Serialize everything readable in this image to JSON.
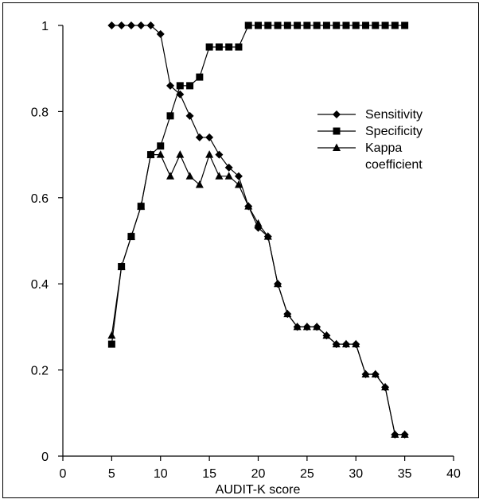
{
  "chart_data": {
    "type": "line",
    "title": "",
    "xlabel": "AUDIT-K score",
    "ylabel": "",
    "xlim": [
      0,
      40
    ],
    "ylim": [
      0,
      1
    ],
    "x_ticks": [
      0,
      5,
      10,
      15,
      20,
      25,
      30,
      35,
      40
    ],
    "x_tick_labels": [
      "0",
      "5",
      "10",
      "15",
      "20",
      "25",
      "30",
      "35",
      "40"
    ],
    "y_ticks": [
      0,
      0.2,
      0.4,
      0.6,
      0.8,
      1
    ],
    "y_tick_labels": [
      "0",
      "0.2",
      "0.4",
      "0.6",
      "0.8",
      "1"
    ],
    "grid": false,
    "legend_position": "top-right",
    "legend_title": "",
    "series": [
      {
        "name": "Sensitivity",
        "marker": "diamond",
        "x": [
          5,
          6,
          7,
          8,
          9,
          10,
          11,
          12,
          13,
          14,
          15,
          16,
          17,
          18,
          19,
          20,
          21,
          22,
          23,
          24,
          25,
          26,
          27,
          28,
          29,
          30,
          31,
          32,
          33,
          34,
          35
        ],
        "y": [
          1.0,
          1.0,
          1.0,
          1.0,
          1.0,
          0.98,
          0.86,
          0.84,
          0.79,
          0.74,
          0.74,
          0.7,
          0.67,
          0.65,
          0.58,
          0.53,
          0.51,
          0.4,
          0.33,
          0.3,
          0.3,
          0.3,
          0.28,
          0.26,
          0.26,
          0.26,
          0.19,
          0.19,
          0.16,
          0.05,
          0.05
        ]
      },
      {
        "name": "Specificity",
        "marker": "square",
        "x": [
          5,
          6,
          7,
          8,
          9,
          10,
          11,
          12,
          13,
          14,
          15,
          16,
          17,
          18,
          19,
          20,
          21,
          22,
          23,
          24,
          25,
          26,
          27,
          28,
          29,
          30,
          31,
          32,
          33,
          34,
          35
        ],
        "y": [
          0.26,
          0.44,
          0.51,
          0.58,
          0.7,
          0.72,
          0.79,
          0.86,
          0.86,
          0.88,
          0.95,
          0.95,
          0.95,
          0.95,
          1.0,
          1.0,
          1.0,
          1.0,
          1.0,
          1.0,
          1.0,
          1.0,
          1.0,
          1.0,
          1.0,
          1.0,
          1.0,
          1.0,
          1.0,
          1.0,
          1.0
        ]
      },
      {
        "name": "Kappa coefficient",
        "marker": "triangle",
        "x": [
          5,
          6,
          7,
          8,
          9,
          10,
          11,
          12,
          13,
          14,
          15,
          16,
          17,
          18,
          19,
          20,
          21,
          22,
          23,
          24,
          25,
          26,
          27,
          28,
          29,
          30,
          31,
          32,
          33,
          34,
          35
        ],
        "y": [
          0.28,
          0.44,
          0.51,
          0.58,
          0.7,
          0.7,
          0.65,
          0.7,
          0.65,
          0.63,
          0.7,
          0.65,
          0.65,
          0.63,
          0.58,
          0.54,
          0.51,
          0.4,
          0.33,
          0.3,
          0.3,
          0.3,
          0.28,
          0.26,
          0.26,
          0.26,
          0.19,
          0.19,
          0.16,
          0.05,
          0.05
        ]
      }
    ]
  }
}
